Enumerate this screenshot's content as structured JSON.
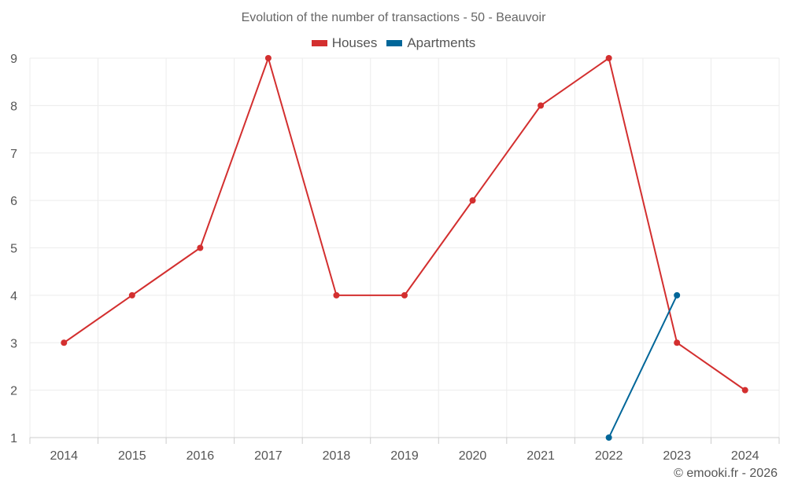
{
  "chart_data": {
    "type": "line",
    "title": "Evolution of the number of transactions - 50 - Beauvoir",
    "categories": [
      "2014",
      "2015",
      "2016",
      "2017",
      "2018",
      "2019",
      "2020",
      "2021",
      "2022",
      "2023",
      "2024"
    ],
    "series": [
      {
        "name": "Houses",
        "color": "#d32f2f",
        "values": [
          3,
          4,
          5,
          9,
          4,
          4,
          6,
          8,
          9,
          3,
          2
        ]
      },
      {
        "name": "Apartments",
        "color": "#006699",
        "values": [
          null,
          null,
          null,
          null,
          null,
          null,
          null,
          null,
          1,
          4,
          null
        ]
      }
    ],
    "ylim": [
      1,
      9
    ],
    "yticks": [
      "1",
      "2",
      "3",
      "4",
      "5",
      "6",
      "7",
      "8",
      "9"
    ],
    "xlabel": "",
    "ylabel": "",
    "grid": true,
    "legend_position": "top-center"
  },
  "credit": "© emooki.fr - 2026"
}
